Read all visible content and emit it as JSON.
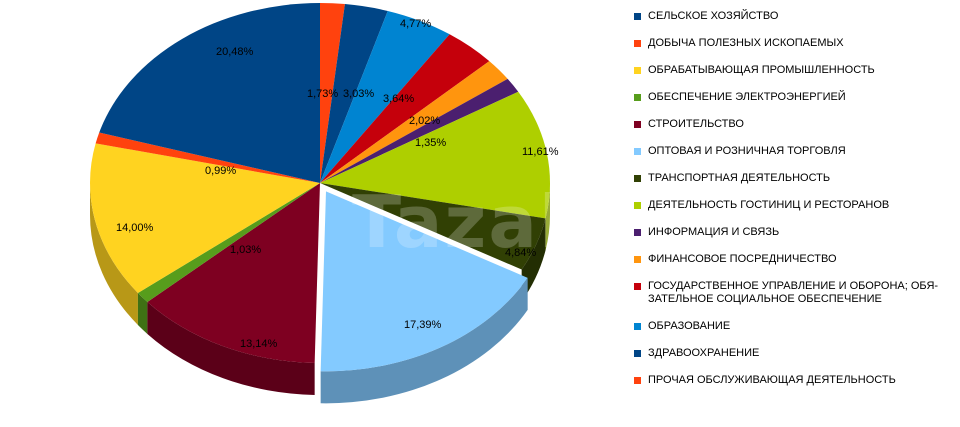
{
  "chart_data": {
    "type": "pie",
    "title": "",
    "watermark": "Tazab",
    "legend_position": "right",
    "slices": [
      {
        "name": "СЕЛЬСКОЕ ХОЗЯЙСТВО",
        "value": 3.03,
        "label": "3,03%",
        "color": "#004586"
      },
      {
        "name": "ДОБЫЧА  ПОЛЕЗНЫХ ИСКОПАЕМЫХ",
        "value": 1.73,
        "label": "1,73%",
        "color": "#ff420e"
      },
      {
        "name": "ОБРАБАТЫВАЮЩАЯ ПРОМЫШЛЕННОСТЬ",
        "value": 14.0,
        "label": "14,00%",
        "color": "#ffd320"
      },
      {
        "name": "ОБЕСПЕЧЕНИЕ ЭЛЕКТРОЭНЕРГИЕЙ",
        "value": 1.03,
        "label": "1,03%",
        "color": "#579d1c"
      },
      {
        "name": "СТРОИТЕЛЬСТВО",
        "value": 13.14,
        "label": "13,14%",
        "color": "#7e0021"
      },
      {
        "name": "ОПТОВАЯ И РОЗНИЧНАЯ ТОРГОВЛЯ",
        "value": 17.39,
        "label": "17,39%",
        "color": "#83caff"
      },
      {
        "name": "ТРАНСПОРТНАЯ ДЕЯТЕЛЬНОСТЬ",
        "value": 4.84,
        "label": "4,84%",
        "color": "#314004"
      },
      {
        "name": "ДЕЯТЕЛЬНОСТЬ ГОСТИНИЦ И РЕСТОРАНОВ",
        "value": 11.61,
        "label": "11,61%",
        "color": "#aecf00"
      },
      {
        "name": "ИНФОРМАЦИЯ И СВЯЗЬ",
        "value": 1.35,
        "label": "1,35%",
        "color": "#4b1f6f"
      },
      {
        "name": "ФИНАНСОВОЕ ПОСРЕДНИЧЕСТВО",
        "value": 2.02,
        "label": "2,02%",
        "color": "#ff950e"
      },
      {
        "name": "ГОСУДАРСТВЕННОЕ УПРАВЛЕНИЕ И ОБОРОНА; ОБЯ-\nЗАТЕЛЬНОЕ СОЦИАЛЬНОЕ ОБЕСПЕЧЕНИЕ",
        "value": 3.64,
        "label": "3,64%",
        "color": "#c5000b"
      },
      {
        "name": "ОБРАЗОВАНИЕ",
        "value": 4.77,
        "label": "4,77%",
        "color": "#0084d1"
      },
      {
        "name": "ЗДРАВООХРАНЕНИЕ",
        "value": 20.48,
        "label": "20,48%",
        "color": "#004586"
      },
      {
        "name": "ПРОЧАЯ ОБСЛУЖИВАЮЩАЯ ДЕЯТЕЛЬНОСТЬ",
        "value": 0.99,
        "label": "0,99%",
        "color": "#ff420e"
      }
    ]
  }
}
